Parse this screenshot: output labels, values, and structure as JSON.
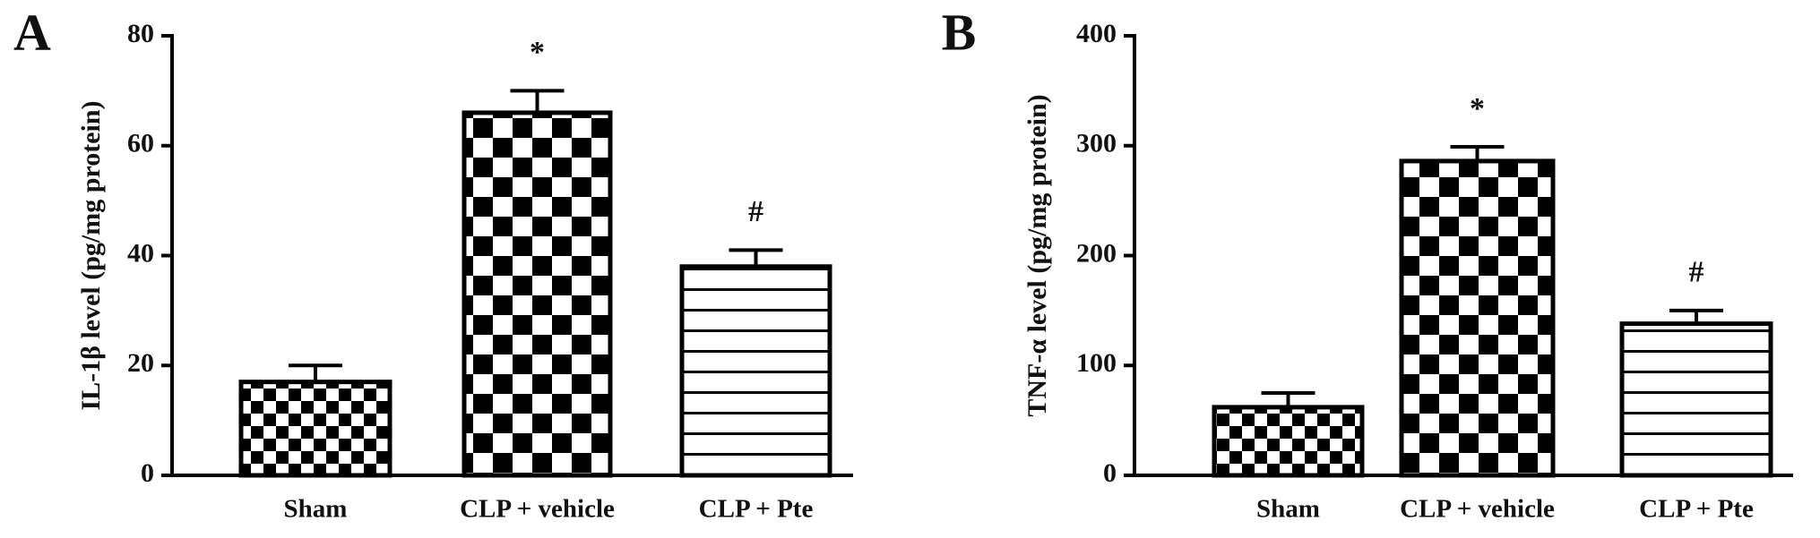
{
  "chart_data": [
    {
      "type": "bar",
      "panel": "A",
      "ylabel": "IL-1β level (pg/mg protein)",
      "categories": [
        "Sham",
        "CLP + vehicle",
        "CLP + Pte"
      ],
      "values": [
        17,
        66,
        38
      ],
      "errors": [
        3,
        4,
        3
      ],
      "significance": [
        null,
        "*",
        "#"
      ],
      "patterns": [
        "checker-small",
        "checker-large",
        "stripes"
      ],
      "ylim": [
        0,
        80
      ],
      "yticks": [
        0,
        20,
        40,
        60,
        80
      ]
    },
    {
      "type": "bar",
      "panel": "B",
      "ylabel": "TNF-α level (pg/mg protein)",
      "categories": [
        "Sham",
        "CLP + vehicle",
        "CLP + Pte"
      ],
      "values": [
        62,
        286,
        138
      ],
      "errors": [
        13,
        13,
        12
      ],
      "significance": [
        null,
        "*",
        "#"
      ],
      "patterns": [
        "checker-small",
        "checker-large",
        "stripes"
      ],
      "ylim": [
        0,
        400
      ],
      "yticks": [
        0,
        100,
        200,
        300,
        400
      ]
    }
  ]
}
